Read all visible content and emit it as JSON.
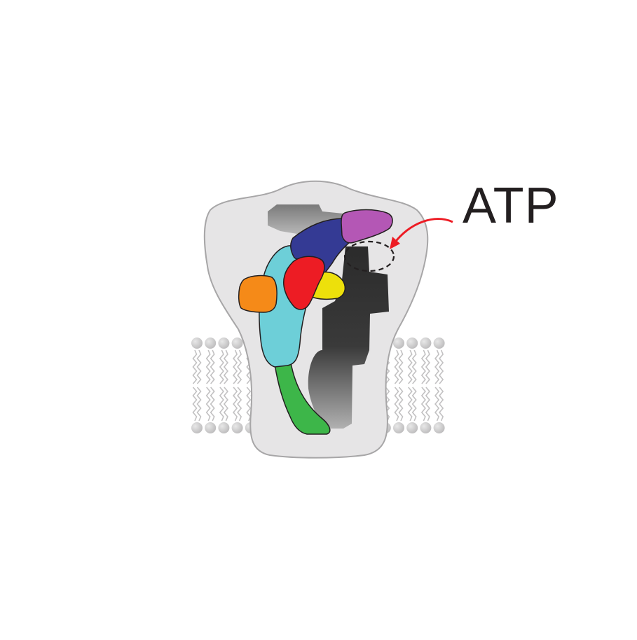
{
  "diagram": {
    "label": "ATP",
    "colors": {
      "background": "#ffffff",
      "protein_envelope": "#e6e5e6",
      "envelope_stroke": "#a7a6a7",
      "lipid_head": "#bdbcbd",
      "lipid_tail": "#c2c1c2",
      "dark_subunit_top": "#2b2b2b",
      "dark_subunit_bottom": "#b0b0b0",
      "cyan_subunit": "#6dcfd8",
      "navy_subunit": "#343a94",
      "magenta_subunit": "#b457b5",
      "red_subunit": "#ed1c24",
      "yellow_subunit": "#ede00b",
      "orange_subunit": "#f58a18",
      "green_subunit": "#3db649",
      "arrow": "#ed1c24",
      "binding_site_outline": "#231f20",
      "label": "#231f20"
    }
  }
}
